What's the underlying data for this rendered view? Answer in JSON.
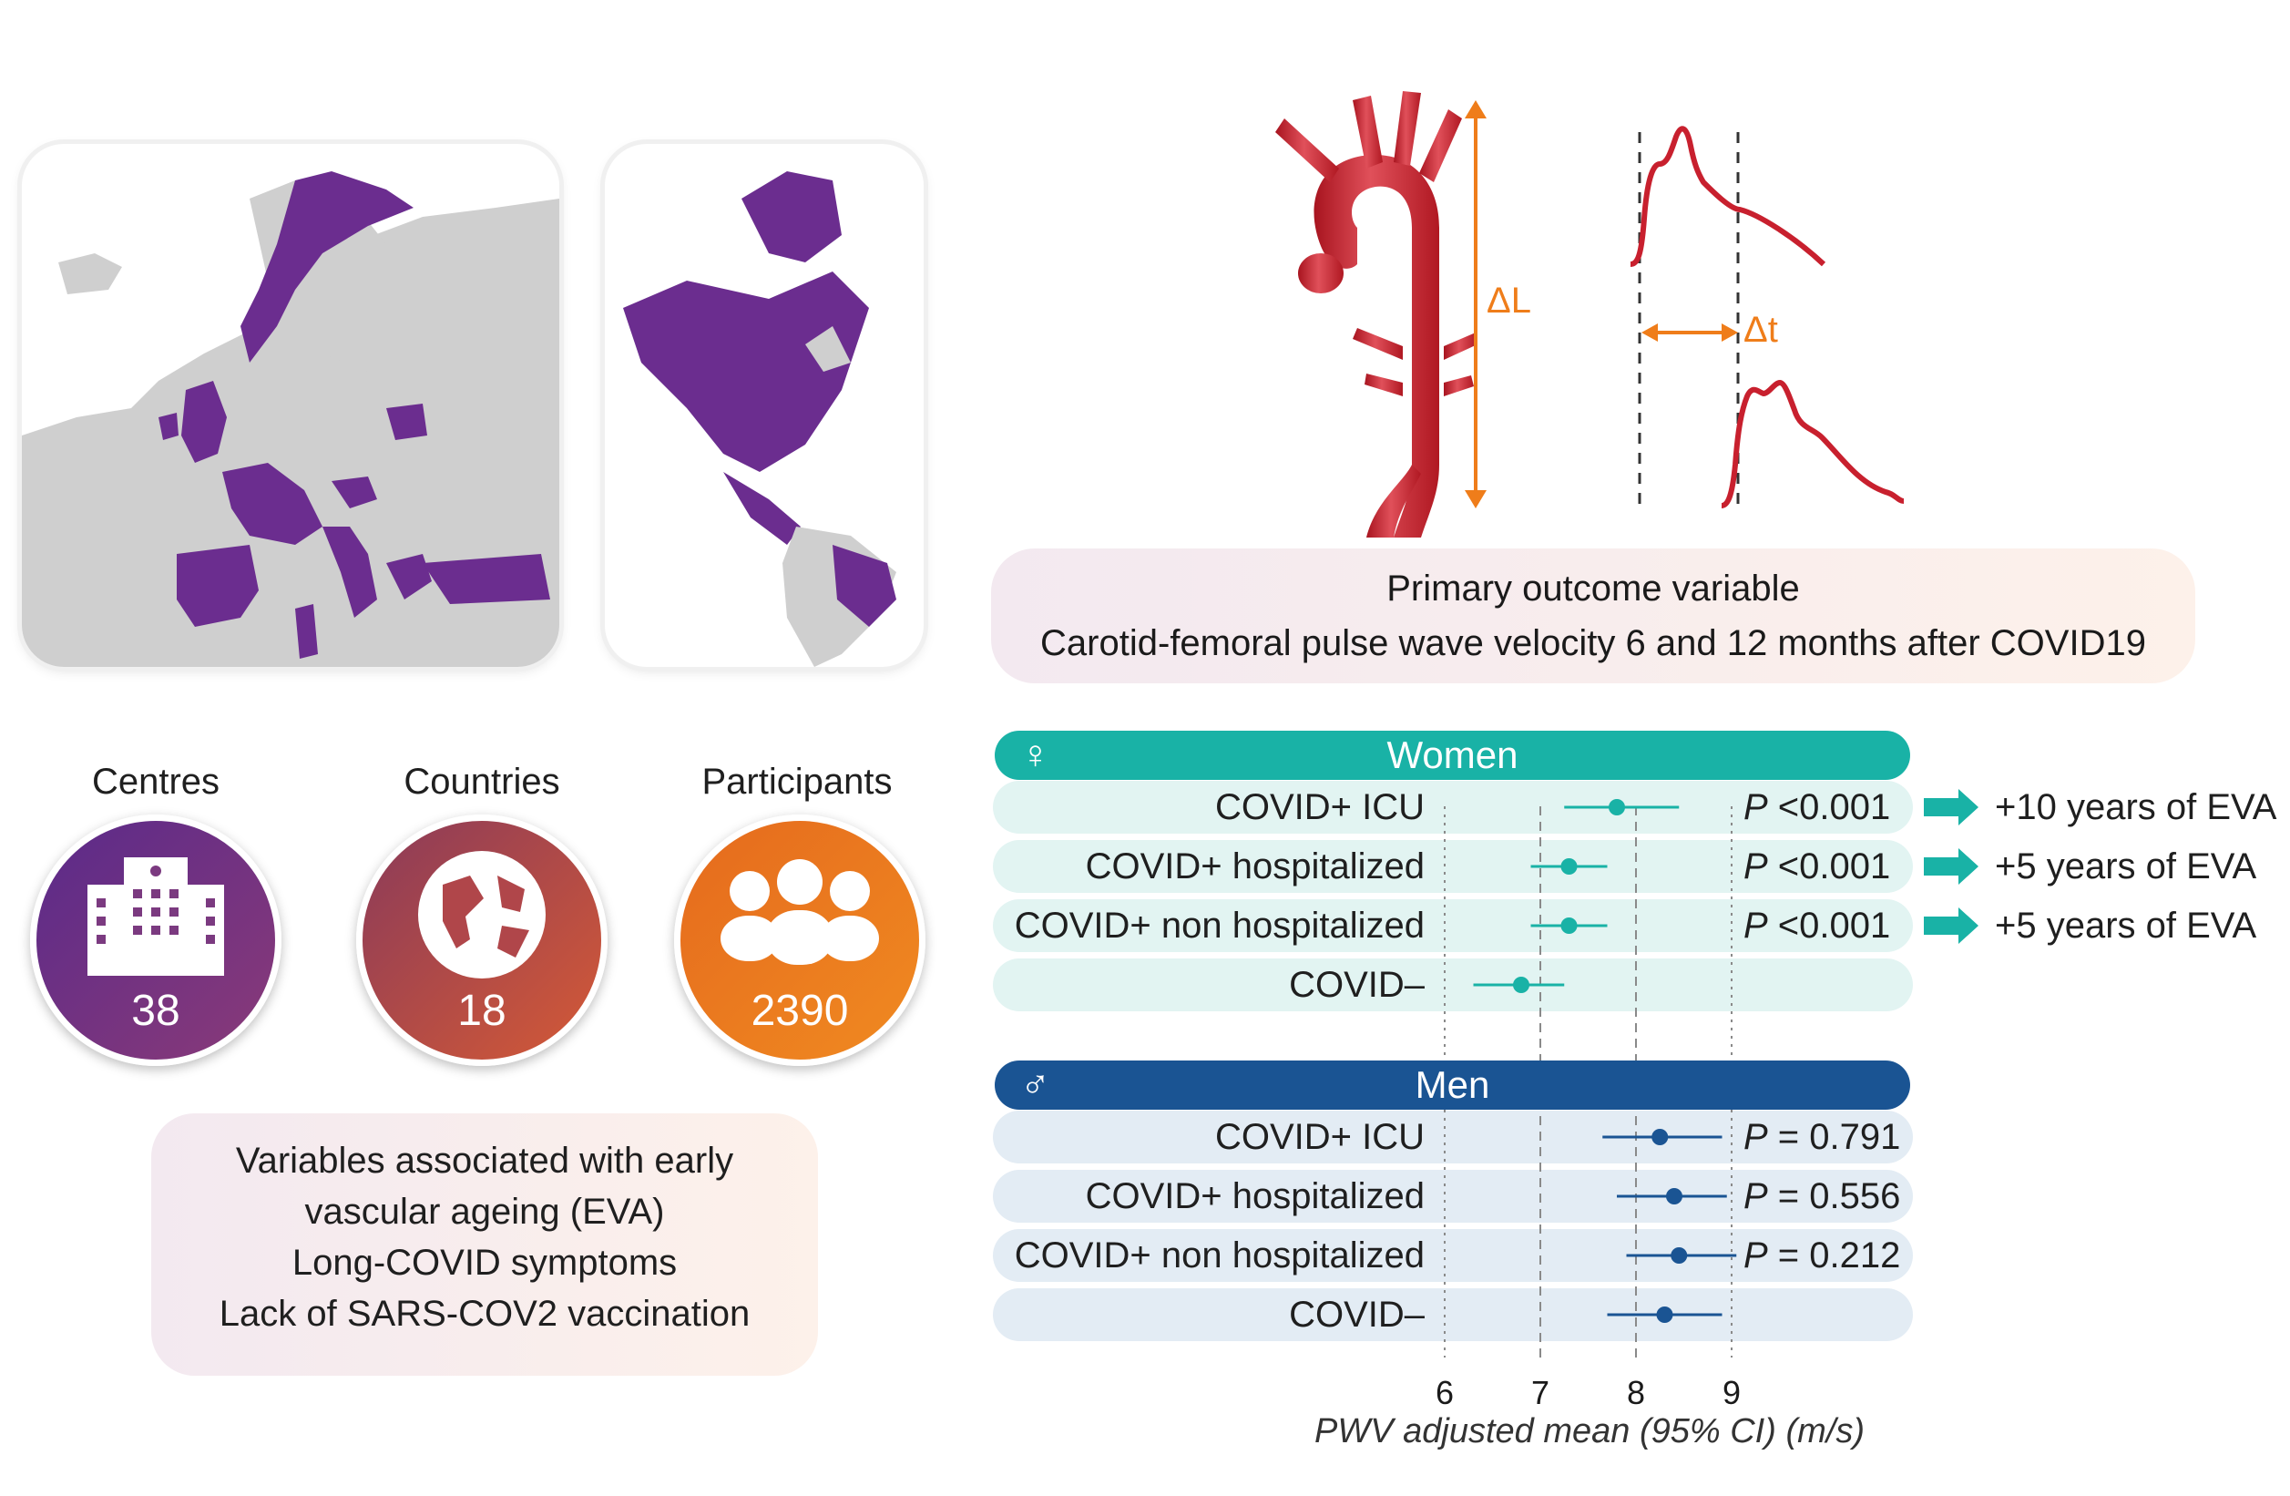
{
  "stats": {
    "centres": {
      "label": "Centres",
      "value": "38",
      "icon": "hospital-building-icon"
    },
    "countries": {
      "label": "Countries",
      "value": "18",
      "icon": "globe-icon"
    },
    "participants": {
      "label": "Participants",
      "value": "2390",
      "icon": "people-group-icon"
    }
  },
  "variables_box": {
    "lines": [
      "Variables associated with early",
      "vascular ageing (EVA)",
      "Long-COVID symptoms",
      "Lack of SARS-COV2 vaccination"
    ]
  },
  "pwv_diagram": {
    "delta_l": "ΔL",
    "delta_t": "Δt"
  },
  "primary_outcome": {
    "title": "Primary outcome variable",
    "subtitle": "Carotid-femoral pulse wave velocity 6 and 12 months after COVID19"
  },
  "colors": {
    "map_highlight": "#6b2d8f",
    "map_base": "#cfcfcf",
    "women": "#19b2a6",
    "women_row": "#e2f4f2",
    "men": "#1a5493",
    "men_row": "#e3ecf4",
    "orange": "#ef7d1a",
    "artery_red": "#c8202e"
  },
  "chart_data": {
    "type": "forest",
    "xlabel": "PWV adjusted mean (95% CI) (m/s)",
    "xlim": [
      6,
      9
    ],
    "ticks": [
      "6",
      "7",
      "8",
      "9"
    ],
    "groups": [
      {
        "name": "Women",
        "symbol": "♀",
        "rows": [
          {
            "label": "COVID+ ICU",
            "mean": 7.8,
            "lo": 7.25,
            "hi": 8.45,
            "p": "P <0.001",
            "eva": "+10 years of EVA"
          },
          {
            "label": "COVID+ hospitalized",
            "mean": 7.3,
            "lo": 6.9,
            "hi": 7.7,
            "p": "P <0.001",
            "eva": "+5 years of EVA"
          },
          {
            "label": "COVID+ non hospitalized",
            "mean": 7.3,
            "lo": 6.9,
            "hi": 7.7,
            "p": "P <0.001",
            "eva": "+5 years of EVA"
          },
          {
            "label": "COVID–",
            "mean": 6.8,
            "lo": 6.3,
            "hi": 7.25,
            "p": "",
            "eva": ""
          }
        ]
      },
      {
        "name": "Men",
        "symbol": "♂",
        "rows": [
          {
            "label": "COVID+ ICU",
            "mean": 8.25,
            "lo": 7.65,
            "hi": 8.9,
            "p": "P = 0.791",
            "eva": ""
          },
          {
            "label": "COVID+ hospitalized",
            "mean": 8.4,
            "lo": 7.8,
            "hi": 8.95,
            "p": "P = 0.556",
            "eva": ""
          },
          {
            "label": "COVID+ non hospitalized",
            "mean": 8.45,
            "lo": 7.9,
            "hi": 9.05,
            "p": "P = 0.212",
            "eva": ""
          },
          {
            "label": "COVID–",
            "mean": 8.3,
            "lo": 7.7,
            "hi": 8.9,
            "p": "",
            "eva": ""
          }
        ]
      }
    ]
  }
}
